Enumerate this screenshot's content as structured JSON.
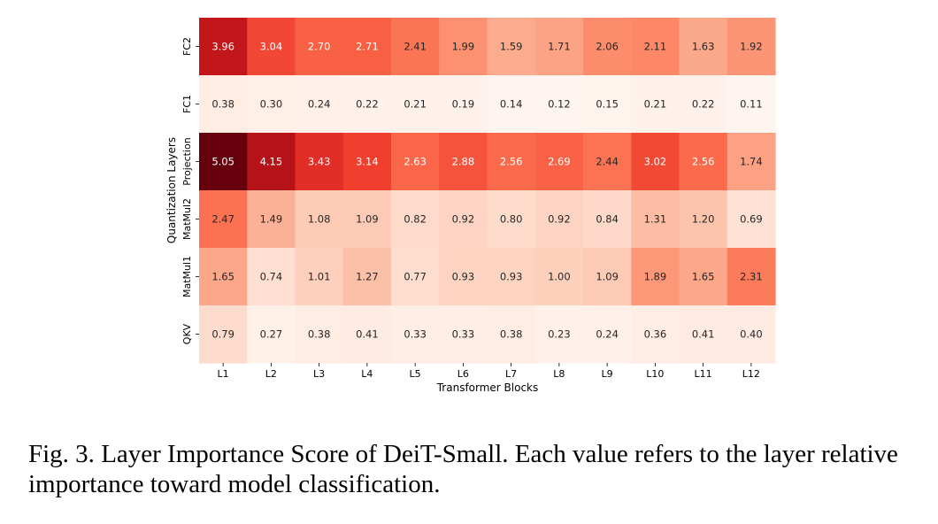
{
  "chart_data": {
    "type": "heatmap",
    "xlabel": "Transformer Blocks",
    "ylabel": "Quantization Layers",
    "x_categories": [
      "L1",
      "L2",
      "L3",
      "L4",
      "L5",
      "L6",
      "L7",
      "L8",
      "L9",
      "L10",
      "L11",
      "L12"
    ],
    "y_categories": [
      "FC2",
      "FC1",
      "Projection",
      "MatMul2",
      "MatMul1",
      "QKV"
    ],
    "colormap": "Reds",
    "vmin": 0.11,
    "vmax": 5.05,
    "values": [
      [
        3.96,
        3.04,
        2.7,
        2.71,
        2.41,
        1.99,
        1.59,
        1.71,
        2.06,
        2.11,
        1.63,
        1.92
      ],
      [
        0.38,
        0.3,
        0.24,
        0.22,
        0.21,
        0.19,
        0.14,
        0.12,
        0.15,
        0.21,
        0.22,
        0.11
      ],
      [
        5.05,
        4.15,
        3.43,
        3.14,
        2.63,
        2.88,
        2.56,
        2.69,
        2.44,
        3.02,
        2.56,
        1.74
      ],
      [
        2.47,
        1.49,
        1.08,
        1.09,
        0.82,
        0.92,
        0.8,
        0.92,
        0.84,
        1.31,
        1.2,
        0.69
      ],
      [
        1.65,
        0.74,
        1.01,
        1.27,
        0.77,
        0.93,
        0.93,
        1.0,
        1.09,
        1.89,
        1.65,
        2.31
      ],
      [
        0.79,
        0.27,
        0.38,
        0.41,
        0.33,
        0.33,
        0.38,
        0.23,
        0.24,
        0.36,
        0.41,
        0.4
      ]
    ]
  },
  "caption": {
    "label": "Fig. 3.",
    "text": "Layer Importance Score of DeiT-Small. Each value refers to the layer relative importance toward model classification."
  }
}
